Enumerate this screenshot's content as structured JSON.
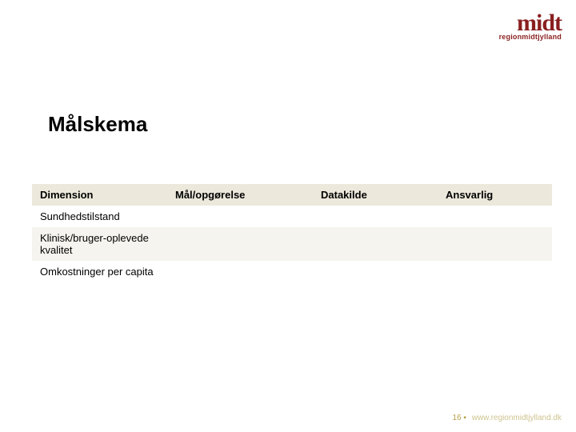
{
  "logo": {
    "main": "midt",
    "sub": "regionmidtjylland"
  },
  "title": "Målskema",
  "table": {
    "columns": [
      "Dimension",
      "Mål/opgørelse",
      "Datakilde",
      "Ansvarlig"
    ],
    "rows": [
      [
        "Sundhedstilstand",
        "",
        "",
        ""
      ],
      [
        "Klinisk/bruger-oplevede kvalitet",
        "",
        "",
        ""
      ],
      [
        "Omkostninger per capita",
        "",
        "",
        ""
      ]
    ]
  },
  "footer": {
    "page": "16",
    "separator": "▪",
    "url": "www.regionmidtjylland.dk"
  },
  "colors": {
    "brand": "#8a1f1f",
    "header_bg": "#ece8dc",
    "row_alt_bg": "#f6f4ee",
    "footer_text": "#b7a14a",
    "footer_url": "#cfc38f",
    "text": "#000000",
    "background": "#ffffff"
  }
}
